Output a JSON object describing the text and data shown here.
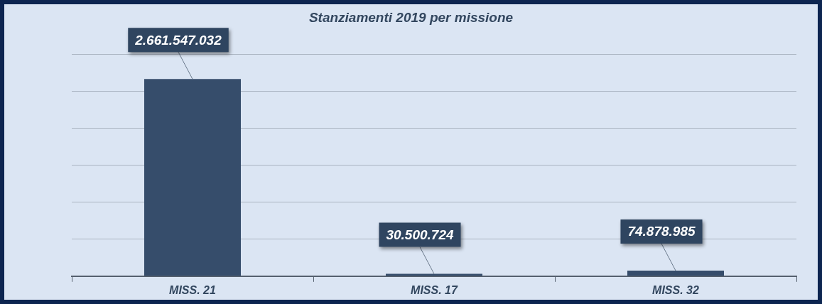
{
  "chart_data": {
    "type": "bar",
    "title": "Stanziamenti 2019 per missione",
    "categories": [
      "MISS. 21",
      "MISS. 17",
      "MISS. 32"
    ],
    "values": [
      2661547032,
      30500724,
      74878985
    ],
    "value_labels": [
      "2.661.547.032",
      "30.500.724",
      "74.878.985"
    ],
    "color": "#364d6b",
    "ylim": [
      0,
      3000000000
    ],
    "yticks": [
      {
        "value": 0,
        "label": null
      },
      {
        "value": 500000000,
        "label": null
      },
      {
        "value": 1000000000,
        "label": null
      },
      {
        "value": 1500000000,
        "label": null
      },
      {
        "value": 2000000000,
        "label": null
      },
      {
        "value": 2500000000,
        "label": null
      },
      {
        "value": 3000000000,
        "label": null
      }
    ],
    "grid": "y",
    "tick_labels": "x",
    "legend": false
  }
}
